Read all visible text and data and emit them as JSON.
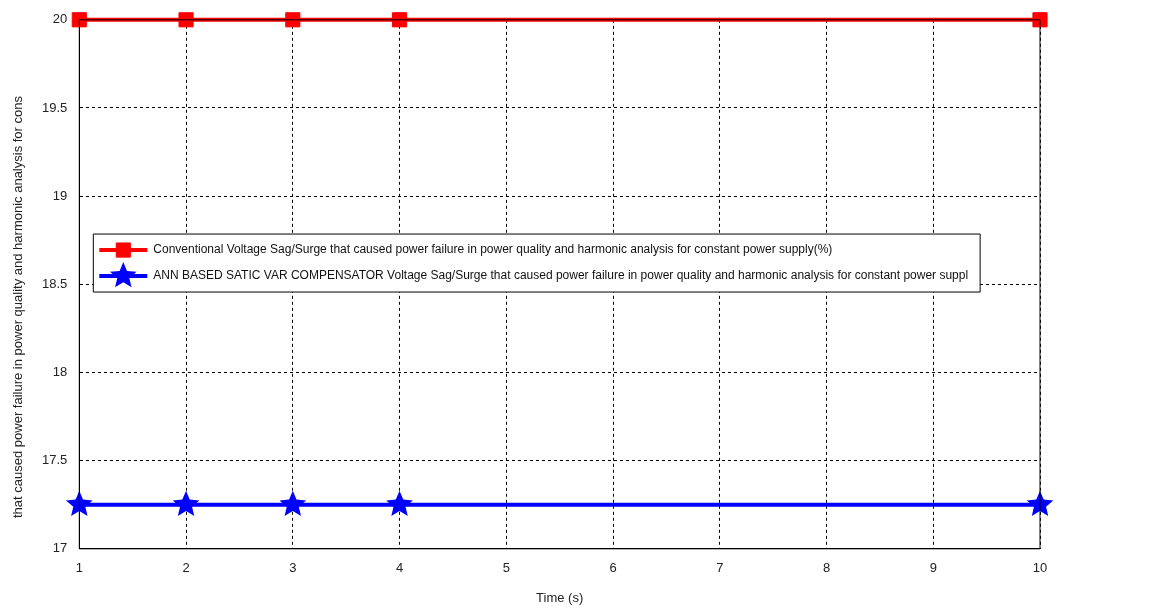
{
  "chart_data": {
    "type": "line",
    "xlabel": "Time (s)",
    "ylabel": "that caused power failure in power quality and harmonic analysis for cons",
    "x": [
      1,
      2,
      3,
      4,
      10
    ],
    "series": [
      {
        "name": "Conventional Voltage Sag/Surge that caused power failure in power quality and harmonic analysis for constant power supply(%)",
        "color": "#ff0000",
        "values": [
          20,
          20,
          20,
          20,
          20
        ],
        "marker": "square"
      },
      {
        "name": "ANN BASED SATIC VAR COMPENSATOR Voltage Sag/Surge that caused power failure in power quality and harmonic analysis for constant power suppl",
        "color": "#0000ff",
        "values": [
          17.25,
          17.25,
          17.25,
          17.25,
          17.25
        ],
        "marker": "star"
      }
    ],
    "xlim": [
      1,
      10
    ],
    "xticks": [
      1,
      2,
      3,
      4,
      5,
      6,
      7,
      8,
      9,
      10
    ],
    "ylim": [
      17,
      20
    ],
    "yticks": [
      17,
      17.5,
      18,
      18.5,
      19,
      19.5,
      20
    ],
    "grid": true,
    "legend": "left",
    "line_style": "solid"
  }
}
